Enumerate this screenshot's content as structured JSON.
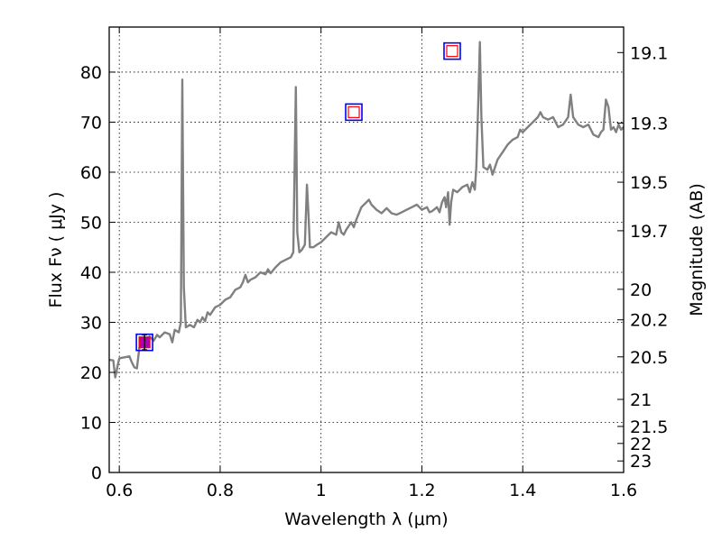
{
  "chart_data": {
    "type": "line",
    "xlabel": "Wavelength  λ (μm)",
    "ylabel": "Flux  Fν  ( μJy )",
    "y2label": "Magnitude (AB)",
    "xlim": [
      0.58,
      1.6
    ],
    "ylim": [
      0,
      89
    ],
    "grid": true,
    "x_ticks": [
      0.6,
      0.8,
      1.0,
      1.2,
      1.4,
      1.6
    ],
    "x_tick_labels": [
      "0.6",
      "0.8",
      "1",
      "1.2",
      "1.4",
      "1.6"
    ],
    "y_ticks": [
      0,
      10,
      20,
      30,
      40,
      50,
      60,
      70,
      80
    ],
    "y_tick_labels": [
      "0",
      "10",
      "20",
      "30",
      "40",
      "50",
      "60",
      "70",
      "80"
    ],
    "y2_ticks": [
      {
        "label": "19.1",
        "flux": 83.9
      },
      {
        "label": "19.3",
        "flux": 69.8
      },
      {
        "label": "19.5",
        "flux": 58.0
      },
      {
        "label": "19.7",
        "flux": 48.3
      },
      {
        "label": "20",
        "flux": 36.6
      },
      {
        "label": "20.2",
        "flux": 30.5
      },
      {
        "label": "20.5",
        "flux": 23.1
      },
      {
        "label": "21",
        "flux": 14.6
      },
      {
        "label": "21.5",
        "flux": 9.2
      },
      {
        "label": "22",
        "flux": 5.8
      },
      {
        "label": "23",
        "flux": 2.3
      }
    ],
    "series": [
      {
        "color": "#808080",
        "points": [
          [
            0.58,
            22.5
          ],
          [
            0.588,
            22.4
          ],
          [
            0.592,
            19.0
          ],
          [
            0.597,
            21.5
          ],
          [
            0.6,
            22.8
          ],
          [
            0.61,
            23.0
          ],
          [
            0.62,
            23.2
          ],
          [
            0.625,
            22.0
          ],
          [
            0.63,
            21.0
          ],
          [
            0.635,
            20.8
          ],
          [
            0.64,
            25.0
          ],
          [
            0.65,
            26.0
          ],
          [
            0.66,
            27.2
          ],
          [
            0.668,
            26.3
          ],
          [
            0.675,
            27.5
          ],
          [
            0.68,
            27.0
          ],
          [
            0.69,
            28.0
          ],
          [
            0.7,
            27.6
          ],
          [
            0.705,
            26.0
          ],
          [
            0.71,
            28.5
          ],
          [
            0.718,
            28.0
          ],
          [
            0.722,
            30.0
          ],
          [
            0.725,
            78.5
          ],
          [
            0.728,
            37.0
          ],
          [
            0.732,
            29.0
          ],
          [
            0.74,
            29.5
          ],
          [
            0.748,
            29.0
          ],
          [
            0.755,
            30.5
          ],
          [
            0.76,
            30.0
          ],
          [
            0.765,
            31.0
          ],
          [
            0.77,
            30.2
          ],
          [
            0.775,
            32.0
          ],
          [
            0.78,
            31.5
          ],
          [
            0.79,
            33.0
          ],
          [
            0.8,
            33.5
          ],
          [
            0.81,
            34.5
          ],
          [
            0.82,
            35.0
          ],
          [
            0.83,
            36.5
          ],
          [
            0.84,
            37.0
          ],
          [
            0.845,
            38.0
          ],
          [
            0.85,
            39.5
          ],
          [
            0.855,
            38.0
          ],
          [
            0.86,
            38.5
          ],
          [
            0.87,
            39.0
          ],
          [
            0.88,
            40.0
          ],
          [
            0.89,
            39.6
          ],
          [
            0.895,
            40.6
          ],
          [
            0.9,
            39.8
          ],
          [
            0.91,
            41.0
          ],
          [
            0.92,
            42.0
          ],
          [
            0.93,
            42.5
          ],
          [
            0.94,
            43.0
          ],
          [
            0.945,
            44.0
          ],
          [
            0.95,
            77.0
          ],
          [
            0.953,
            48.0
          ],
          [
            0.957,
            44.0
          ],
          [
            0.962,
            44.5
          ],
          [
            0.968,
            45.5
          ],
          [
            0.972,
            57.5
          ],
          [
            0.975,
            52.0
          ],
          [
            0.978,
            45.0
          ],
          [
            0.985,
            45.0
          ],
          [
            0.992,
            45.5
          ],
          [
            1.0,
            46.0
          ],
          [
            1.01,
            47.0
          ],
          [
            1.02,
            48.0
          ],
          [
            1.03,
            47.5
          ],
          [
            1.035,
            50.0
          ],
          [
            1.04,
            48.0
          ],
          [
            1.045,
            47.5
          ],
          [
            1.05,
            48.5
          ],
          [
            1.06,
            50.0
          ],
          [
            1.065,
            49.0
          ],
          [
            1.07,
            50.5
          ],
          [
            1.08,
            53.0
          ],
          [
            1.09,
            54.0
          ],
          [
            1.095,
            54.5
          ],
          [
            1.1,
            53.5
          ],
          [
            1.11,
            52.5
          ],
          [
            1.12,
            51.8
          ],
          [
            1.13,
            52.8
          ],
          [
            1.14,
            51.8
          ],
          [
            1.15,
            51.5
          ],
          [
            1.16,
            52.0
          ],
          [
            1.17,
            52.5
          ],
          [
            1.18,
            53.0
          ],
          [
            1.19,
            53.5
          ],
          [
            1.195,
            53.0
          ],
          [
            1.2,
            52.5
          ],
          [
            1.21,
            53.0
          ],
          [
            1.215,
            52.0
          ],
          [
            1.22,
            52.2
          ],
          [
            1.23,
            53.0
          ],
          [
            1.235,
            52.0
          ],
          [
            1.24,
            54.0
          ],
          [
            1.245,
            55.0
          ],
          [
            1.248,
            53.0
          ],
          [
            1.252,
            56.0
          ],
          [
            1.255,
            49.5
          ],
          [
            1.258,
            54.0
          ],
          [
            1.262,
            56.5
          ],
          [
            1.27,
            56.0
          ],
          [
            1.28,
            57.0
          ],
          [
            1.29,
            57.5
          ],
          [
            1.295,
            56.0
          ],
          [
            1.3,
            58.0
          ],
          [
            1.305,
            56.5
          ],
          [
            1.308,
            61.0
          ],
          [
            1.312,
            75.0
          ],
          [
            1.315,
            86.0
          ],
          [
            1.318,
            71.0
          ],
          [
            1.322,
            61.0
          ],
          [
            1.33,
            60.5
          ],
          [
            1.335,
            61.5
          ],
          [
            1.34,
            59.5
          ],
          [
            1.345,
            61.0
          ],
          [
            1.35,
            62.5
          ],
          [
            1.36,
            64.0
          ],
          [
            1.37,
            65.5
          ],
          [
            1.38,
            66.5
          ],
          [
            1.39,
            67.0
          ],
          [
            1.395,
            68.5
          ],
          [
            1.4,
            68.0
          ],
          [
            1.41,
            69.0
          ],
          [
            1.42,
            70.0
          ],
          [
            1.43,
            71.0
          ],
          [
            1.435,
            72.0
          ],
          [
            1.44,
            71.0
          ],
          [
            1.45,
            70.5
          ],
          [
            1.46,
            71.0
          ],
          [
            1.47,
            69.0
          ],
          [
            1.48,
            69.5
          ],
          [
            1.49,
            71.0
          ],
          [
            1.495,
            75.5
          ],
          [
            1.5,
            71.0
          ],
          [
            1.51,
            69.5
          ],
          [
            1.52,
            69.0
          ],
          [
            1.53,
            69.5
          ],
          [
            1.54,
            67.5
          ],
          [
            1.55,
            67.0
          ],
          [
            1.555,
            68.0
          ],
          [
            1.56,
            68.5
          ],
          [
            1.565,
            74.5
          ],
          [
            1.57,
            73.0
          ],
          [
            1.575,
            68.5
          ],
          [
            1.58,
            69.0
          ],
          [
            1.585,
            68.0
          ],
          [
            1.59,
            69.5
          ],
          [
            1.595,
            68.5
          ],
          [
            1.6,
            69.0
          ]
        ]
      }
    ],
    "markers": [
      {
        "x": 0.65,
        "y": 26.0,
        "outer": "#0000ff",
        "inner": "#ff0000",
        "fill": "#b000b0",
        "error": 1.5
      },
      {
        "x": 1.065,
        "y": 72.0,
        "outer": "#0000ff",
        "inner": "#ff0000",
        "fill": "none"
      },
      {
        "x": 1.26,
        "y": 84.2,
        "outer": "#0000ff",
        "inner": "#ff0000",
        "fill": "none"
      }
    ]
  }
}
